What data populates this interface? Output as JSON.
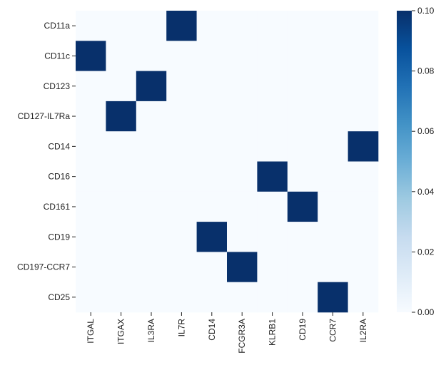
{
  "chart_data": {
    "type": "heatmap",
    "title": "",
    "xlabel": "",
    "ylabel": "",
    "rows": [
      "CD11a",
      "CD11c",
      "CD123",
      "CD127-IL7Ra",
      "CD14",
      "CD16",
      "CD161",
      "CD19",
      "CD197-CCR7",
      "CD25"
    ],
    "columns": [
      "ITGAL",
      "ITGAX",
      "IL3RA",
      "IL7R",
      "CD14",
      "FCGR3A",
      "KLRB1",
      "CD19",
      "CCR7",
      "IL2RA"
    ],
    "values": [
      [
        0,
        0,
        0,
        0.1,
        0,
        0,
        0,
        0,
        0,
        0
      ],
      [
        0.1,
        0,
        0,
        0,
        0,
        0,
        0,
        0,
        0,
        0
      ],
      [
        0,
        0,
        0.1,
        0,
        0,
        0,
        0,
        0,
        0,
        0
      ],
      [
        0,
        0.1,
        0,
        0,
        0,
        0,
        0,
        0,
        0,
        0
      ],
      [
        0,
        0,
        0,
        0,
        0,
        0,
        0,
        0,
        0,
        0.1
      ],
      [
        0,
        0,
        0,
        0,
        0,
        0,
        0.1,
        0,
        0,
        0
      ],
      [
        0,
        0,
        0,
        0,
        0,
        0,
        0,
        0.1,
        0,
        0
      ],
      [
        0,
        0,
        0,
        0,
        0.1,
        0,
        0,
        0,
        0,
        0
      ],
      [
        0,
        0,
        0,
        0,
        0,
        0.1,
        0,
        0,
        0,
        0
      ],
      [
        0,
        0,
        0,
        0,
        0,
        0,
        0,
        0,
        0.1,
        0
      ]
    ],
    "colorbar": {
      "min": 0,
      "max": 0.1,
      "ticks": [
        "0.00",
        "0.02",
        "0.04",
        "0.06",
        "0.08",
        "0.10"
      ],
      "colormap": "Blues",
      "low_color": "#f7fbff",
      "high_color": "#08306b"
    }
  }
}
